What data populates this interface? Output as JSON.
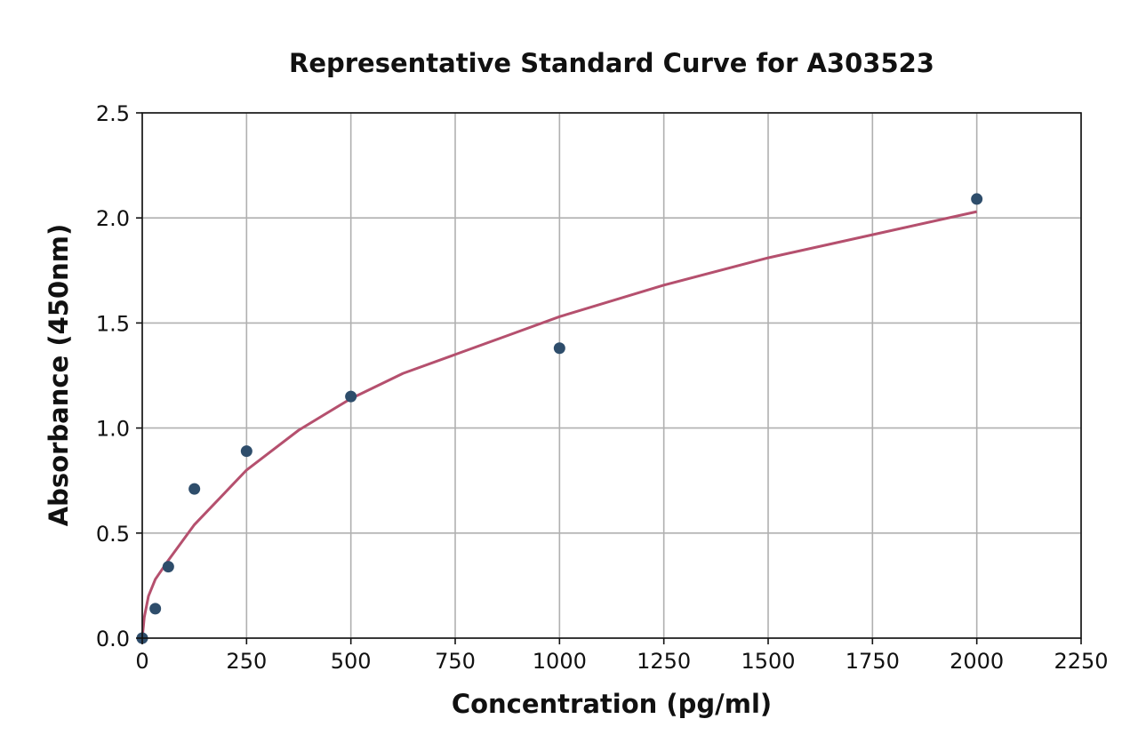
{
  "chart_data": {
    "type": "scatter",
    "title": "Representative Standard Curve for A303523",
    "xlabel": "Concentration (pg/ml)",
    "ylabel": "Absorbance (450nm)",
    "xlim": [
      0,
      2250
    ],
    "ylim": [
      0,
      2.5
    ],
    "xticks": [
      "0",
      "250",
      "500",
      "750",
      "1000",
      "1250",
      "1500",
      "1750",
      "2000",
      "2250"
    ],
    "yticks": [
      "0.0",
      "0.5",
      "1.0",
      "1.5",
      "2.0",
      "2.5"
    ],
    "grid": true,
    "series": [
      {
        "kind": "points",
        "color": "#2e4d6b",
        "x": [
          0,
          31.25,
          62.5,
          125,
          250,
          500,
          1000,
          2000
        ],
        "y": [
          0.0,
          0.14,
          0.34,
          0.71,
          0.89,
          1.15,
          1.38,
          2.09
        ]
      },
      {
        "kind": "fit-curve",
        "color": "#b5506e",
        "x": [
          0,
          5,
          15,
          31.25,
          62.5,
          125,
          250,
          375,
          500,
          625,
          750,
          875,
          1000,
          1250,
          1500,
          1750,
          2000
        ],
        "y": [
          0.0,
          0.1,
          0.2,
          0.28,
          0.37,
          0.54,
          0.8,
          0.99,
          1.14,
          1.26,
          1.35,
          1.44,
          1.53,
          1.68,
          1.81,
          1.92,
          2.03
        ]
      }
    ]
  }
}
